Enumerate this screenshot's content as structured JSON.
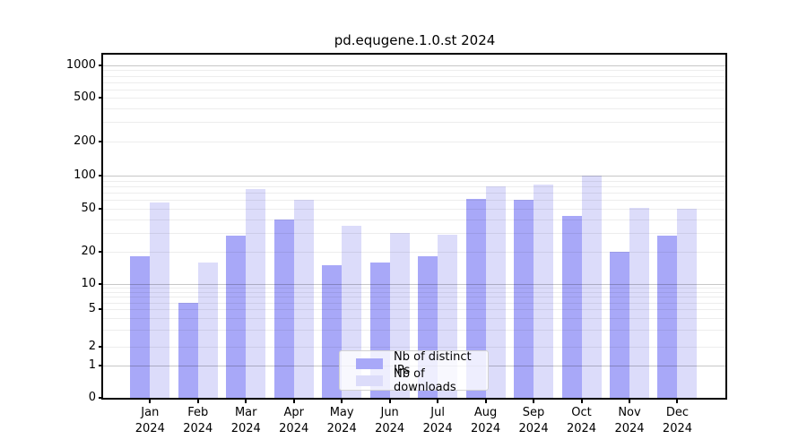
{
  "title": "pd.equgene.1.0.st 2024",
  "chart_data": {
    "type": "bar",
    "title": "pd.equgene.1.0.st 2024",
    "categories": [
      "Jan",
      "Feb",
      "Mar",
      "Apr",
      "May",
      "Jun",
      "Jul",
      "Aug",
      "Sep",
      "Oct",
      "Nov",
      "Dec"
    ],
    "xtick_year": "2024",
    "series": [
      {
        "name": "Nb of distinct IPs",
        "color": "#a8a8f8",
        "values": [
          18,
          6,
          28,
          40,
          15,
          16,
          18,
          61,
          60,
          43,
          20,
          28
        ]
      },
      {
        "name": "Nb of downloads",
        "color": "#dcdcfa",
        "values": [
          57,
          16,
          75,
          60,
          35,
          30,
          29,
          80,
          83,
          100,
          51,
          50
        ]
      }
    ],
    "xlabel": "",
    "ylabel": "",
    "yscale": "log-like with 0 baseline",
    "ytick_labels": [
      "0",
      "1",
      "2",
      "5",
      "10",
      "20",
      "50",
      "100",
      "200",
      "500",
      "1000"
    ],
    "ytick_values": [
      0,
      1,
      2,
      5,
      10,
      20,
      50,
      100,
      200,
      500,
      1000
    ],
    "ylim": [
      0,
      1400
    ],
    "grid": "major and minor horizontal gridlines",
    "legend_position": "lower center"
  }
}
